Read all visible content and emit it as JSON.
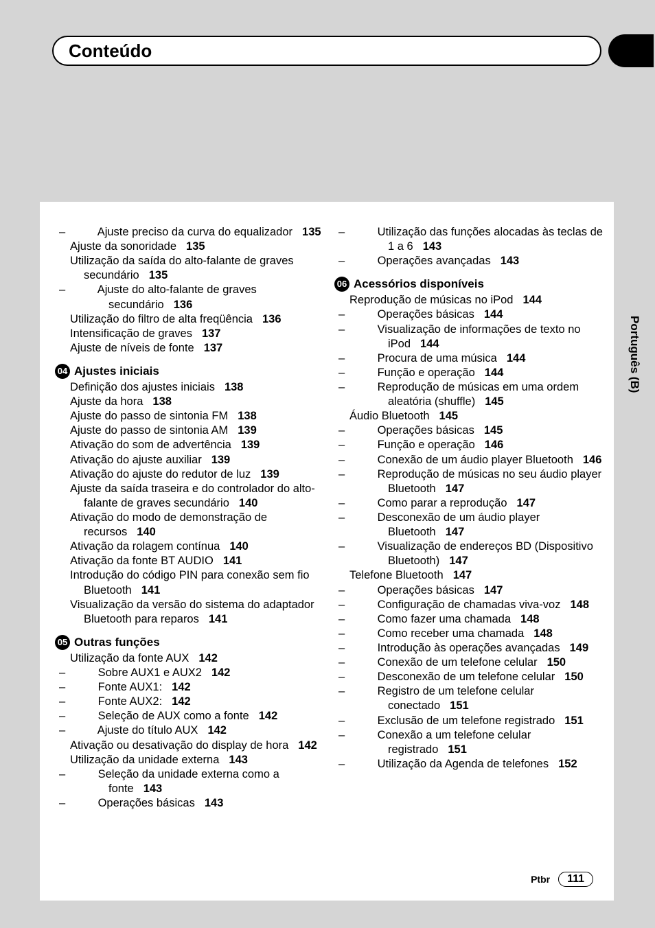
{
  "title": "Conteúdo",
  "side_label": "Português (B)",
  "footer": {
    "lang": "Ptbr",
    "page": "111"
  },
  "left": {
    "pre": [
      {
        "lvl": 2,
        "t": "Ajuste preciso da curva do equalizador",
        "p": "135"
      },
      {
        "lvl": 1,
        "t": "Ajuste da sonoridade",
        "p": "135"
      },
      {
        "lvl": 1,
        "t": "Utilização da saída do alto-falante de graves secundário",
        "p": "135"
      },
      {
        "lvl": 2,
        "t": "Ajuste do alto-falante de graves secundário",
        "p": "136"
      },
      {
        "lvl": 1,
        "t": "Utilização do filtro de alta freqüência",
        "p": "136"
      },
      {
        "lvl": 1,
        "t": "Intensificação de graves",
        "p": "137"
      },
      {
        "lvl": 1,
        "t": "Ajuste de níveis de fonte",
        "p": "137"
      }
    ],
    "s04": {
      "num": "04",
      "title": "Ajustes iniciais",
      "items": [
        {
          "lvl": 1,
          "t": "Definição dos ajustes iniciais",
          "p": "138"
        },
        {
          "lvl": 1,
          "t": "Ajuste da hora",
          "p": "138"
        },
        {
          "lvl": 1,
          "t": "Ajuste do passo de sintonia FM",
          "p": "138"
        },
        {
          "lvl": 1,
          "t": "Ajuste do passo de sintonia AM",
          "p": "139"
        },
        {
          "lvl": 1,
          "t": "Ativação do som de advertência",
          "p": "139"
        },
        {
          "lvl": 1,
          "t": "Ativação do ajuste auxiliar",
          "p": "139"
        },
        {
          "lvl": 1,
          "t": "Ativação do ajuste do redutor de luz",
          "p": "139"
        },
        {
          "lvl": 1,
          "t": "Ajuste da saída traseira e do controlador do alto-falante de graves secundário",
          "p": "140"
        },
        {
          "lvl": 1,
          "t": "Ativação do modo de demonstração de recursos",
          "p": "140"
        },
        {
          "lvl": 1,
          "t": "Ativação da rolagem contínua",
          "p": "140"
        },
        {
          "lvl": 1,
          "t": "Ativação da fonte BT AUDIO",
          "p": "141"
        },
        {
          "lvl": 1,
          "t": "Introdução do código PIN para conexão sem fio Bluetooth",
          "p": "141"
        },
        {
          "lvl": 1,
          "t": "Visualização da versão do sistema do adaptador Bluetooth para reparos",
          "p": "141"
        }
      ]
    },
    "s05": {
      "num": "05",
      "title": "Outras funções",
      "items": [
        {
          "lvl": 1,
          "t": "Utilização da fonte AUX",
          "p": "142"
        },
        {
          "lvl": 2,
          "t": "Sobre AUX1 e AUX2",
          "p": "142"
        },
        {
          "lvl": 2,
          "t": "Fonte AUX1:",
          "p": "142"
        },
        {
          "lvl": 2,
          "t": "Fonte AUX2:",
          "p": "142"
        },
        {
          "lvl": 2,
          "t": "Seleção de AUX como a fonte",
          "p": "142"
        },
        {
          "lvl": 2,
          "t": "Ajuste do título AUX",
          "p": "142"
        },
        {
          "lvl": 1,
          "t": "Ativação ou desativação do display de hora",
          "p": "142"
        },
        {
          "lvl": 1,
          "t": "Utilização da unidade externa",
          "p": "143"
        },
        {
          "lvl": 2,
          "t": "Seleção da unidade externa como a fonte",
          "p": "143"
        },
        {
          "lvl": 2,
          "t": "Operações básicas",
          "p": "143"
        }
      ]
    }
  },
  "right": {
    "pre": [
      {
        "lvl": 2,
        "t": "Utilização das funções alocadas às teclas de 1 a 6",
        "p": "143"
      },
      {
        "lvl": 2,
        "t": "Operações avançadas",
        "p": "143"
      }
    ],
    "s06": {
      "num": "06",
      "title": "Acessórios disponíveis",
      "items": [
        {
          "lvl": 1,
          "t": "Reprodução de músicas no iPod",
          "p": "144"
        },
        {
          "lvl": 2,
          "t": "Operações básicas",
          "p": "144"
        },
        {
          "lvl": 2,
          "t": "Visualização de informações de texto no iPod",
          "p": "144"
        },
        {
          "lvl": 2,
          "t": "Procura de uma música",
          "p": "144"
        },
        {
          "lvl": 2,
          "t": "Função e operação",
          "p": "144"
        },
        {
          "lvl": 2,
          "t": "Reprodução de músicas em uma ordem aleatória (shuffle)",
          "p": "145"
        },
        {
          "lvl": 1,
          "t": "Áudio Bluetooth",
          "p": "145"
        },
        {
          "lvl": 2,
          "t": "Operações básicas",
          "p": "145"
        },
        {
          "lvl": 2,
          "t": "Função e operação",
          "p": "146"
        },
        {
          "lvl": 2,
          "t": "Conexão de um áudio player Bluetooth",
          "p": "146"
        },
        {
          "lvl": 2,
          "t": "Reprodução de músicas no seu áudio player Bluetooth",
          "p": "147"
        },
        {
          "lvl": 2,
          "t": "Como parar a reprodução",
          "p": "147"
        },
        {
          "lvl": 2,
          "t": "Desconexão de um áudio player Bluetooth",
          "p": "147"
        },
        {
          "lvl": 2,
          "t": "Visualização de endereços BD (Dispositivo Bluetooth)",
          "p": "147"
        },
        {
          "lvl": 1,
          "t": "Telefone Bluetooth",
          "p": "147"
        },
        {
          "lvl": 2,
          "t": "Operações básicas",
          "p": "147"
        },
        {
          "lvl": 2,
          "t": "Configuração de chamadas viva-voz",
          "p": "148"
        },
        {
          "lvl": 2,
          "t": "Como fazer uma chamada",
          "p": "148"
        },
        {
          "lvl": 2,
          "t": "Como receber uma chamada",
          "p": "148"
        },
        {
          "lvl": 2,
          "t": "Introdução às operações avançadas",
          "p": "149"
        },
        {
          "lvl": 2,
          "t": "Conexão de um telefone celular",
          "p": "150"
        },
        {
          "lvl": 2,
          "t": "Desconexão de um telefone celular",
          "p": "150"
        },
        {
          "lvl": 2,
          "t": "Registro de um telefone celular conectado",
          "p": "151"
        },
        {
          "lvl": 2,
          "t": "Exclusão de um telefone registrado",
          "p": "151"
        },
        {
          "lvl": 2,
          "t": "Conexão a um telefone celular registrado",
          "p": "151"
        },
        {
          "lvl": 2,
          "t": "Utilização da Agenda de telefones",
          "p": "152"
        }
      ]
    }
  }
}
